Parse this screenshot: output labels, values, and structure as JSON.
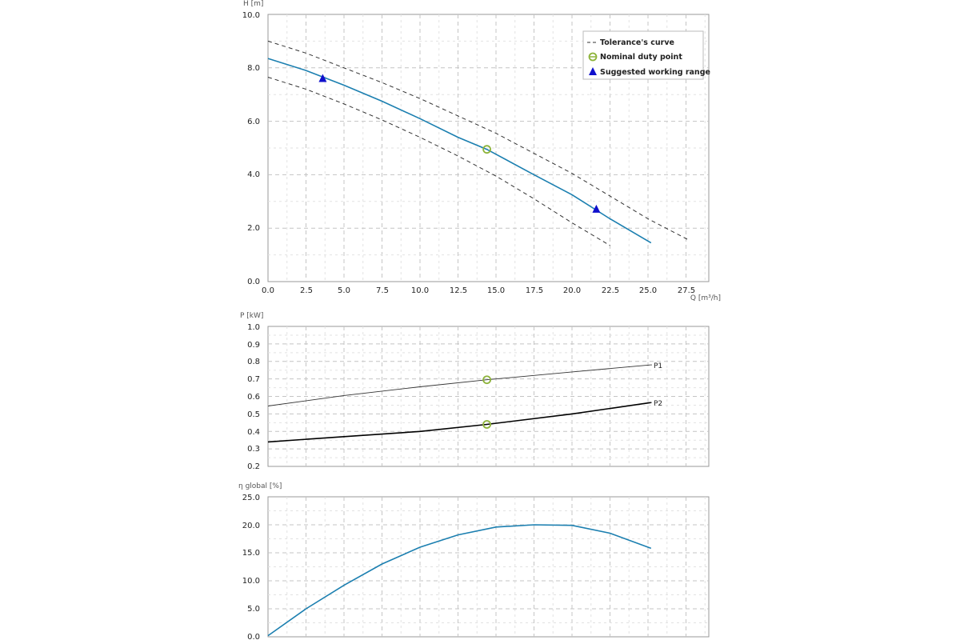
{
  "colors": {
    "main_curve": "#1b7fb0",
    "tolerance_curve": "#333333",
    "duty_point": "#8db33a",
    "working_range": "#1010cc",
    "grid": "#cfcfcf",
    "p1": "#333333",
    "p2": "#000000"
  },
  "chart_data": [
    {
      "type": "line",
      "id": "head",
      "ylabel": "H [m]",
      "xlabel": "Q [m³/h]",
      "xlim": [
        0,
        29
      ],
      "ylim": [
        0,
        10
      ],
      "grid": true,
      "x_ticks": [
        "0.0",
        "2.5",
        "5.0",
        "7.5",
        "10.0",
        "12.5",
        "15.0",
        "17.5",
        "20.0",
        "22.5",
        "25.0",
        "27.5"
      ],
      "y_ticks": [
        "0.0",
        "2.0",
        "4.0",
        "6.0",
        "8.0",
        "10.0"
      ],
      "legend_position": "top-right",
      "legend": [
        {
          "name": "Tolerance's curve",
          "icon": "dashed-line-icon"
        },
        {
          "name": "Nominal duty point",
          "icon": "circle-marker-icon"
        },
        {
          "name": "Suggested working range",
          "icon": "triangle-marker-icon"
        }
      ],
      "series": [
        {
          "role": "main",
          "x": [
            0,
            2.5,
            5,
            7.5,
            10,
            12.5,
            14.4,
            17.5,
            20,
            22.5,
            25.2
          ],
          "y": [
            8.35,
            7.9,
            7.35,
            6.75,
            6.1,
            5.4,
            4.95,
            4.0,
            3.25,
            2.35,
            1.45
          ]
        },
        {
          "role": "tolerance-upper",
          "x": [
            0,
            2.5,
            5,
            7.5,
            10,
            12.5,
            15,
            17.5,
            20,
            22.5,
            25,
            27.7
          ],
          "y": [
            9.0,
            8.55,
            8.0,
            7.45,
            6.85,
            6.2,
            5.55,
            4.8,
            4.05,
            3.2,
            2.35,
            1.55
          ]
        },
        {
          "role": "tolerance-lower",
          "x": [
            0,
            2.5,
            5,
            7.5,
            10,
            12.5,
            15,
            17.5,
            20,
            22.5
          ],
          "y": [
            7.65,
            7.2,
            6.65,
            6.05,
            5.4,
            4.7,
            3.95,
            3.1,
            2.2,
            1.35
          ]
        }
      ],
      "duty_points": [
        {
          "x": 14.4,
          "y": 4.95
        }
      ],
      "working_range": [
        {
          "x": 3.6,
          "y": 7.62
        },
        {
          "x": 21.6,
          "y": 2.73
        }
      ]
    },
    {
      "type": "line",
      "id": "power",
      "ylabel": "P [kW]",
      "xlim": [
        0,
        29
      ],
      "ylim": [
        0.2,
        1.0
      ],
      "grid": true,
      "y_ticks": [
        "0.2",
        "0.3",
        "0.4",
        "0.5",
        "0.6",
        "0.7",
        "0.8",
        "0.9",
        "1.0"
      ],
      "series": [
        {
          "name": "P1",
          "x": [
            0,
            5,
            10,
            14.4,
            20,
            25.2
          ],
          "y": [
            0.545,
            0.605,
            0.655,
            0.695,
            0.74,
            0.78
          ]
        },
        {
          "name": "P2",
          "x": [
            0,
            5,
            10,
            14.4,
            20,
            25.2
          ],
          "y": [
            0.34,
            0.37,
            0.4,
            0.44,
            0.5,
            0.565
          ]
        }
      ],
      "duty_points": [
        {
          "x": 14.4,
          "y": 0.695
        },
        {
          "x": 14.4,
          "y": 0.44
        }
      ]
    },
    {
      "type": "line",
      "id": "efficiency",
      "ylabel": "η global [%]",
      "xlim": [
        0,
        29
      ],
      "ylim": [
        0,
        25
      ],
      "grid": true,
      "y_ticks": [
        "0.0",
        "5.0",
        "10.0",
        "15.0",
        "20.0",
        "25.0"
      ],
      "series": [
        {
          "role": "efficiency",
          "x": [
            0,
            2.5,
            5,
            7.5,
            10,
            12.5,
            15,
            17.5,
            20,
            22.5,
            25.2
          ],
          "y": [
            0.2,
            5.0,
            9.2,
            13.0,
            16.0,
            18.2,
            19.6,
            20.0,
            19.9,
            18.5,
            15.8
          ]
        }
      ]
    }
  ]
}
